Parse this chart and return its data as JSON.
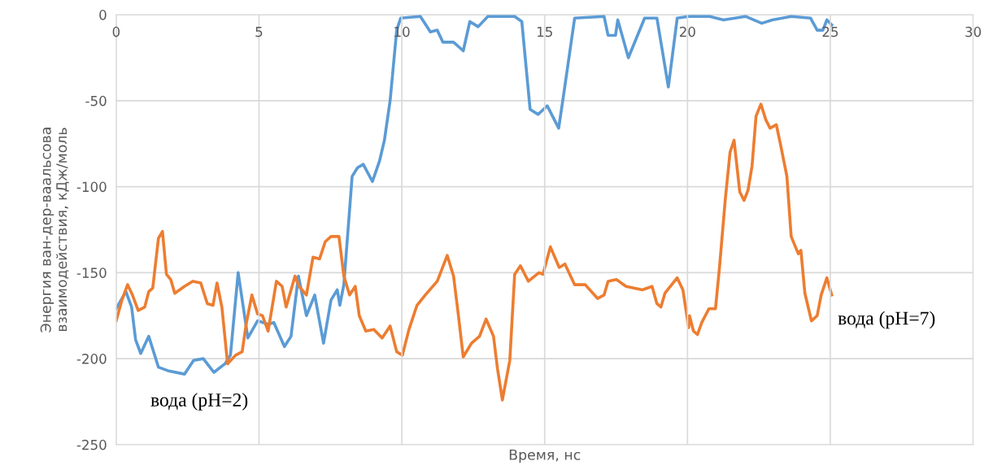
{
  "chart_data": {
    "type": "line",
    "xlabel": "Время, нс",
    "ylabel": "Энергия ван-дер-ваальсова\nвзаимодействия, кДж/моль",
    "xlim": [
      0,
      30
    ],
    "xticks": [
      0,
      5,
      10,
      15,
      20,
      25,
      30
    ],
    "ylim": [
      -250,
      0
    ],
    "yticks": [
      -250,
      -200,
      -150,
      -100,
      -50,
      0
    ],
    "grid": true,
    "legend": false,
    "marker": "none",
    "line_style": "solid",
    "series": [
      {
        "name": "вода (pH=2)",
        "color": "#5b9bd5",
        "x": [
          0,
          0.34,
          0.54,
          0.68,
          0.86,
          1.14,
          1.48,
          1.81,
          2.39,
          2.71,
          3.05,
          3.42,
          3.81,
          4.0,
          4.27,
          4.61,
          4.95,
          5.32,
          5.52,
          5.89,
          6.12,
          6.38,
          6.66,
          6.95,
          7.26,
          7.52,
          7.74,
          7.83,
          7.97,
          8.26,
          8.45,
          8.65,
          8.97,
          9.22,
          9.39,
          9.59,
          9.82,
          9.96,
          10.65,
          11.0,
          11.24,
          11.44,
          11.81,
          12.15,
          12.38,
          12.67,
          13.01,
          13.95,
          14.2,
          14.49,
          14.77,
          15.09,
          15.49,
          15.66,
          16.05,
          17.08,
          17.22,
          17.48,
          17.56,
          17.93,
          18.5,
          18.93,
          19.33,
          19.64,
          20.04,
          20.78,
          21.26,
          22.03,
          22.6,
          22.97,
          23.63,
          24.31,
          24.54,
          24.74,
          24.88,
          25.05
        ],
        "values": [
          -171,
          -161,
          -170,
          -189,
          -197,
          -187,
          -205,
          -207,
          -209,
          -201,
          -200,
          -208,
          -203,
          -198,
          -150,
          -188,
          -178,
          -180,
          -179,
          -193,
          -187,
          -152,
          -175,
          -163,
          -191,
          -166,
          -160,
          -169,
          -157,
          -94,
          -89,
          -87,
          -97,
          -85,
          -73,
          -50,
          -9,
          -2,
          -1,
          -10,
          -9,
          -16,
          -16,
          -21,
          -4,
          -7,
          -1,
          -1,
          -4,
          -55,
          -58,
          -53,
          -66,
          -47,
          -2,
          -1,
          -12,
          -12,
          -3,
          -25,
          -2,
          -2,
          -42,
          -2,
          -1,
          -1,
          -3,
          -1,
          -5,
          -3,
          -1,
          -2,
          -9,
          -9,
          -3,
          -6
        ]
      },
      {
        "name": "вода (pH=7)",
        "color": "#ed7d31",
        "x": [
          0,
          0.2,
          0.4,
          0.57,
          0.77,
          1.0,
          1.14,
          1.28,
          1.48,
          1.62,
          1.76,
          1.91,
          2.05,
          2.39,
          2.68,
          2.96,
          3.19,
          3.39,
          3.53,
          3.7,
          3.9,
          4.18,
          4.41,
          4.55,
          4.75,
          4.95,
          5.12,
          5.32,
          5.61,
          5.81,
          5.95,
          6.26,
          6.4,
          6.66,
          6.89,
          7.12,
          7.32,
          7.52,
          7.8,
          7.97,
          8.17,
          8.37,
          8.51,
          8.74,
          9.02,
          9.31,
          9.59,
          9.82,
          10.02,
          10.25,
          10.53,
          10.82,
          11.24,
          11.59,
          11.81,
          11.96,
          12.15,
          12.44,
          12.72,
          12.95,
          13.21,
          13.35,
          13.52,
          13.78,
          13.95,
          14.15,
          14.43,
          14.8,
          14.94,
          15.2,
          15.51,
          15.71,
          16.05,
          16.42,
          16.85,
          17.08,
          17.22,
          17.51,
          17.85,
          18.42,
          18.76,
          18.93,
          19.07,
          19.21,
          19.64,
          19.84,
          20.04,
          20.07,
          20.21,
          20.35,
          20.5,
          20.75,
          20.98,
          21.12,
          21.32,
          21.49,
          21.63,
          21.83,
          21.98,
          22.12,
          22.26,
          22.4,
          22.57,
          22.74,
          22.89,
          23.11,
          23.25,
          23.48,
          23.63,
          23.88,
          23.97,
          24.11,
          24.34,
          24.54,
          24.68,
          24.88,
          25.05
        ],
        "values": [
          -178,
          -166,
          -157,
          -163,
          -172,
          -170,
          -161,
          -159,
          -130,
          -126,
          -151,
          -154,
          -162,
          -158,
          -155,
          -156,
          -168,
          -169,
          -156,
          -170,
          -203,
          -198,
          -196,
          -180,
          -163,
          -174,
          -175,
          -184,
          -155,
          -158,
          -170,
          -152,
          -158,
          -163,
          -141,
          -142,
          -132,
          -129,
          -129,
          -152,
          -163,
          -158,
          -175,
          -184,
          -183,
          -188,
          -181,
          -196,
          -198,
          -183,
          -169,
          -163,
          -155,
          -140,
          -152,
          -172,
          -199,
          -191,
          -187,
          -177,
          -187,
          -206,
          -224,
          -201,
          -151,
          -146,
          -155,
          -150,
          -151,
          -135,
          -147,
          -145,
          -157,
          -157,
          -165,
          -163,
          -155,
          -154,
          -158,
          -160,
          -158,
          -168,
          -170,
          -162,
          -153,
          -160,
          -182,
          -175,
          -184,
          -186,
          -179,
          -171,
          -171,
          -147,
          -108,
          -80,
          -73,
          -103,
          -108,
          -102,
          -88,
          -59,
          -52,
          -61,
          -66,
          -64,
          -75,
          -94,
          -129,
          -139,
          -137,
          -162,
          -178,
          -175,
          -163,
          -153,
          -163
        ]
      }
    ]
  }
}
